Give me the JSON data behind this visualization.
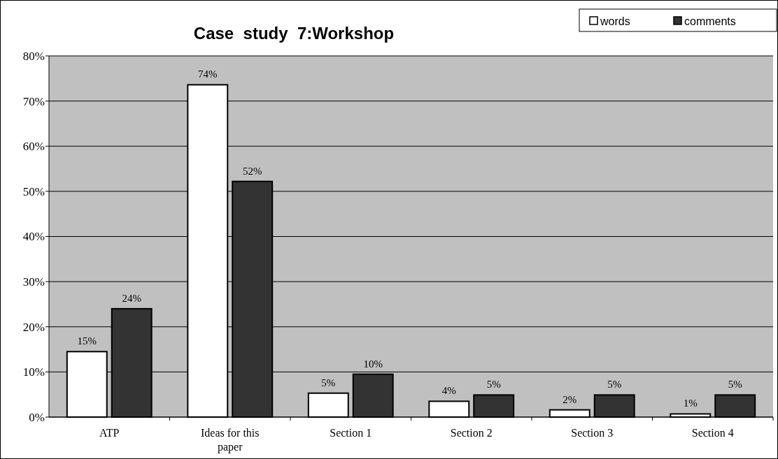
{
  "chart_data": {
    "type": "bar",
    "title": "Case  study  7:Workshop",
    "categories": [
      "ATP",
      "Ideas for this paper",
      "Section 1",
      "Section 2",
      "Section 3",
      "Section 4"
    ],
    "series": [
      {
        "name": "words",
        "color": "#ffffff",
        "values": [
          14.5,
          73.6,
          5.3,
          3.5,
          1.6,
          0.7
        ],
        "value_labels": [
          "15%",
          "74%",
          "5%",
          "4%",
          "2%",
          "1%"
        ]
      },
      {
        "name": "comments",
        "color": "#333333",
        "values": [
          24,
          52.2,
          9.5,
          4.9,
          4.9,
          4.9
        ],
        "value_labels": [
          "24%",
          "52%",
          "10%",
          "5%",
          "5%",
          "5%"
        ]
      }
    ],
    "ylim": [
      0,
      80
    ],
    "yticks": [
      {
        "value": 0,
        "label": "0%"
      },
      {
        "value": 10,
        "label": "10%"
      },
      {
        "value": 20,
        "label": "20%"
      },
      {
        "value": 30,
        "label": "30%"
      },
      {
        "value": 40,
        "label": "40%"
      },
      {
        "value": 50,
        "label": "50%"
      },
      {
        "value": 60,
        "label": "60%"
      },
      {
        "value": 70,
        "label": "70%"
      },
      {
        "value": 80,
        "label": "80%"
      }
    ],
    "grid": "y",
    "legend": "top right"
  }
}
